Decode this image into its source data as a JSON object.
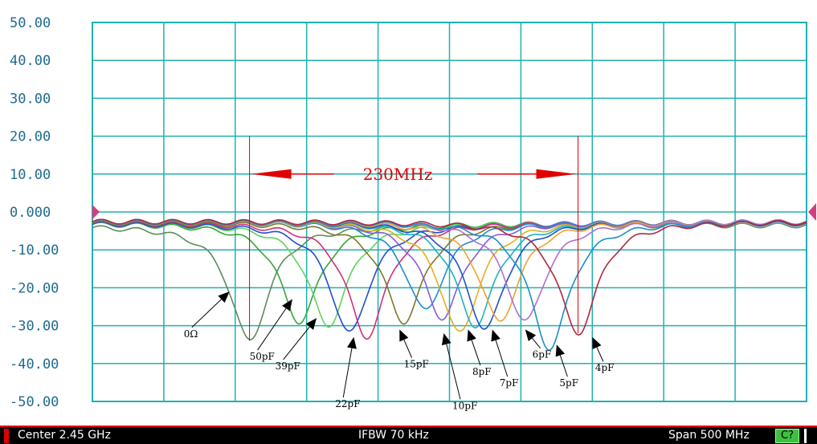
{
  "chart_data": {
    "type": "line",
    "title": "",
    "xlabel": "",
    "ylabel": "",
    "ylim": [
      -50,
      50
    ],
    "xlim": [
      2.2,
      2.7
    ],
    "grid": true,
    "y_ticks": [
      "50.00",
      "40.00",
      "30.00",
      "20.00",
      "10.00",
      "0.000",
      "-10.00",
      "-20.00",
      "-30.00",
      "-40.00",
      "-50.00"
    ],
    "y_tick_values": [
      50,
      40,
      30,
      20,
      10,
      0,
      -10,
      -20,
      -30,
      -40,
      -50
    ],
    "reference_level": 0,
    "bandwidth_annotation": {
      "label": "230MHz",
      "x_start": 2.31,
      "x_end": 2.54,
      "y": 10
    },
    "series": [
      {
        "name": "0Ω",
        "color": "#5c8c5c",
        "f0": 2.31,
        "depth": -34,
        "floor": -3.5
      },
      {
        "name": "50pF",
        "color": "#33a833",
        "f0": 2.345,
        "depth": -29,
        "floor": -3.0
      },
      {
        "name": "39pF",
        "color": "#5fd35f",
        "f0": 2.365,
        "depth": -30,
        "floor": -3.0
      },
      {
        "name": "",
        "color": "#1f4fd0",
        "f0": 2.38,
        "depth": -32,
        "floor": -3.0
      },
      {
        "name": "22pF",
        "color": "#d0307a",
        "f0": 2.392,
        "depth": -33,
        "floor": -2.8
      },
      {
        "name": "",
        "color": "#7a7a2a",
        "f0": 2.418,
        "depth": -29,
        "floor": -2.8
      },
      {
        "name": "15pF",
        "color": "#1e8ad6",
        "f0": 2.433,
        "depth": -26,
        "floor": -2.6
      },
      {
        "name": "",
        "color": "#8a5cd6",
        "f0": 2.445,
        "depth": -28,
        "floor": -2.6
      },
      {
        "name": "10pF",
        "color": "#e0b020",
        "f0": 2.457,
        "depth": -32,
        "floor": -2.6
      },
      {
        "name": "",
        "color": "#20b0c0",
        "f0": 2.468,
        "depth": -30,
        "floor": -2.6
      },
      {
        "name": "8pF",
        "color": "#2050c8",
        "f0": 2.475,
        "depth": -31,
        "floor": -2.5
      },
      {
        "name": "7pF",
        "color": "#f0a030",
        "f0": 2.485,
        "depth": -29,
        "floor": -2.5
      },
      {
        "name": "6pF",
        "color": "#b070d0",
        "f0": 2.503,
        "depth": -29,
        "floor": -2.5
      },
      {
        "name": "5pF",
        "color": "#1a90c8",
        "f0": 2.52,
        "depth": -36,
        "floor": -2.5
      },
      {
        "name": "4pF",
        "color": "#b02840",
        "f0": 2.54,
        "depth": -32,
        "floor": -2.5
      }
    ],
    "annotations": [
      {
        "label": "0Ω",
        "x": 2.264,
        "y": -33,
        "arrow_to": [
          2.296,
          -21
        ]
      },
      {
        "label": "50pF",
        "x": 2.31,
        "y": -39,
        "arrow_to": [
          2.34,
          -23
        ]
      },
      {
        "label": "39pF",
        "x": 2.328,
        "y": -41.5,
        "arrow_to": [
          2.357,
          -28
        ]
      },
      {
        "label": "22pF",
        "x": 2.37,
        "y": -51.5,
        "arrow_to": [
          2.383,
          -33
        ]
      },
      {
        "label": "15pF",
        "x": 2.418,
        "y": -41,
        "arrow_to": [
          2.415,
          -31
        ]
      },
      {
        "label": "10pF",
        "x": 2.452,
        "y": -52,
        "arrow_to": [
          2.446,
          -32
        ]
      },
      {
        "label": "8pF",
        "x": 2.466,
        "y": -43,
        "arrow_to": [
          2.463,
          -31
        ]
      },
      {
        "label": "7pF",
        "x": 2.485,
        "y": -46,
        "arrow_to": [
          2.48,
          -31
        ]
      },
      {
        "label": "6pF",
        "x": 2.508,
        "y": -38.5,
        "arrow_to": [
          2.503,
          -31
        ]
      },
      {
        "label": "5pF",
        "x": 2.527,
        "y": -46,
        "arrow_to": [
          2.525,
          -35
        ]
      },
      {
        "label": "4pF",
        "x": 2.552,
        "y": -42,
        "arrow_to": [
          2.55,
          -33
        ]
      }
    ]
  },
  "status_bar": {
    "center": "Center 2.45 GHz",
    "ifbw": "IFBW 70 kHz",
    "span": "Span 500 MHz",
    "channel": "C?"
  }
}
